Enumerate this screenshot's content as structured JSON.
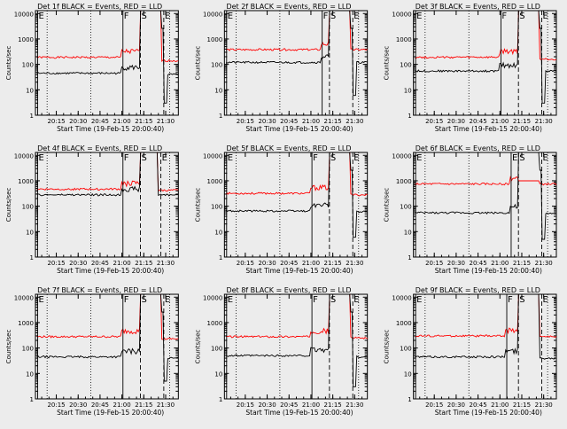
{
  "figure": {
    "x_tick_labels": [
      "20:15",
      "20:30",
      "20:45",
      "21:00",
      "21:15",
      "21:30"
    ],
    "xlabel": "Start Time (19-Feb-15 20:00:40)",
    "ylabel": "Counts/sec",
    "y_tick_labels": [
      "1",
      "10",
      "100",
      "1000",
      "10000"
    ]
  },
  "chart_data": [
    {
      "type": "line",
      "title": "Det 1f BLACK = Events, RED = LLD",
      "xlim_min": [
        0,
        98
      ],
      "ylim": [
        1,
        13000
      ],
      "yscale": "log",
      "markers": [
        {
          "label": "E",
          "x": 1.5
        },
        {
          "label": "F",
          "x": 60
        },
        {
          "label": "S",
          "x": 72
        },
        {
          "label": "E",
          "x": 88
        }
      ],
      "series": [
        {
          "color": "#ff0000",
          "baseline": 190,
          "peak": 13000,
          "post": 140,
          "dip": null
        },
        {
          "color": "#000000",
          "baseline": 45,
          "peak": 13000,
          "post": 40,
          "dip": 3
        }
      ]
    },
    {
      "type": "line",
      "title": "Det 2f BLACK = Events, RED = LLD",
      "xlim_min": [
        0,
        98
      ],
      "ylim": [
        1,
        13000
      ],
      "yscale": "log",
      "markers": [
        {
          "label": "E",
          "x": 1.5
        },
        {
          "label": "F",
          "x": 67
        },
        {
          "label": "S",
          "x": 72
        },
        {
          "label": "E",
          "x": 88
        }
      ],
      "series": [
        {
          "color": "#ff0000",
          "baseline": 380,
          "peak": 13000,
          "post": 380,
          "dip": null
        },
        {
          "color": "#000000",
          "baseline": 120,
          "peak": 13000,
          "post": 120,
          "dip": 6
        }
      ]
    },
    {
      "type": "line",
      "title": "Det 3f BLACK = Events, RED = LLD",
      "xlim_min": [
        0,
        98
      ],
      "ylim": [
        1,
        13000
      ],
      "yscale": "log",
      "markers": [
        {
          "label": "E",
          "x": 1.5
        },
        {
          "label": "F",
          "x": 60
        },
        {
          "label": "S",
          "x": 72
        },
        {
          "label": "E",
          "x": 88
        }
      ],
      "series": [
        {
          "color": "#ff0000",
          "baseline": 190,
          "peak": 13000,
          "post": 160,
          "dip": null
        },
        {
          "color": "#000000",
          "baseline": 55,
          "peak": 13000,
          "post": 55,
          "dip": 3
        }
      ]
    },
    {
      "type": "line",
      "title": "Det 4f BLACK = Events, RED = LLD",
      "xlim_min": [
        0,
        98
      ],
      "ylim": [
        1,
        13000
      ],
      "yscale": "log",
      "markers": [
        {
          "label": "E",
          "x": 1.5
        },
        {
          "label": "F",
          "x": 60
        },
        {
          "label": "S",
          "x": 72
        },
        {
          "label": "E",
          "x": 86
        }
      ],
      "series": [
        {
          "color": "#ff0000",
          "baseline": 470,
          "peak": 13000,
          "post": 420,
          "dip": null
        },
        {
          "color": "#000000",
          "baseline": 280,
          "peak": 13000,
          "post": 280,
          "dip": null
        }
      ]
    },
    {
      "type": "line",
      "title": "Det 5f BLACK = Events, RED = LLD",
      "xlim_min": [
        0,
        98
      ],
      "ylim": [
        1,
        13000
      ],
      "yscale": "log",
      "markers": [
        {
          "label": "E",
          "x": 1.5
        },
        {
          "label": "F",
          "x": 60
        },
        {
          "label": "S",
          "x": 72
        },
        {
          "label": "E",
          "x": 88
        }
      ],
      "series": [
        {
          "color": "#ff0000",
          "baseline": 320,
          "peak": 13000,
          "post": 280,
          "dip": null
        },
        {
          "color": "#000000",
          "baseline": 65,
          "peak": 13000,
          "post": 60,
          "dip": 6
        }
      ]
    },
    {
      "type": "line",
      "title": "Det 6f BLACK = Events, RED = LLD",
      "xlim_min": [
        0,
        98
      ],
      "ylim": [
        1,
        13000
      ],
      "yscale": "log",
      "markers": [
        {
          "label": "E",
          "x": 1.5
        },
        {
          "label": "E",
          "x": 67
        },
        {
          "label": "S",
          "x": 72
        },
        {
          "label": "E",
          "x": 88
        }
      ],
      "series": [
        {
          "color": "#ff0000",
          "baseline": 750,
          "peak": 1000,
          "post": 750,
          "dip": null
        },
        {
          "color": "#000000",
          "baseline": 55,
          "peak": 13000,
          "post": 50,
          "dip": 5
        }
      ]
    },
    {
      "type": "line",
      "title": "Det 7f BLACK = Events, RED = LLD",
      "xlim_min": [
        0,
        98
      ],
      "ylim": [
        1,
        13000
      ],
      "yscale": "log",
      "markers": [
        {
          "label": "E",
          "x": 1.5
        },
        {
          "label": "F",
          "x": 60
        },
        {
          "label": "S",
          "x": 72
        },
        {
          "label": "E",
          "x": 88
        }
      ],
      "series": [
        {
          "color": "#ff0000",
          "baseline": 280,
          "peak": 13000,
          "post": 230,
          "dip": null
        },
        {
          "color": "#000000",
          "baseline": 45,
          "peak": 13000,
          "post": 40,
          "dip": 5
        }
      ]
    },
    {
      "type": "line",
      "title": "Det 8f BLACK = Events, RED = LLD",
      "xlim_min": [
        0,
        98
      ],
      "ylim": [
        1,
        13000
      ],
      "yscale": "log",
      "markers": [
        {
          "label": "E",
          "x": 1.5
        },
        {
          "label": "F",
          "x": 60
        },
        {
          "label": "S",
          "x": 72
        },
        {
          "label": "E",
          "x": 88
        }
      ],
      "series": [
        {
          "color": "#ff0000",
          "baseline": 280,
          "peak": 13000,
          "post": 250,
          "dip": null
        },
        {
          "color": "#000000",
          "baseline": 50,
          "peak": 13000,
          "post": 45,
          "dip": 3
        }
      ]
    },
    {
      "type": "line",
      "title": "Det 9f BLACK = Events, RED = LLD",
      "xlim_min": [
        0,
        98
      ],
      "ylim": [
        1,
        13000
      ],
      "yscale": "log",
      "markers": [
        {
          "label": "E",
          "x": 1.5
        },
        {
          "label": "F",
          "x": 64
        },
        {
          "label": "S",
          "x": 72
        },
        {
          "label": "E",
          "x": 88
        }
      ],
      "series": [
        {
          "color": "#ff0000",
          "baseline": 300,
          "peak": 13000,
          "post": 280,
          "dip": null
        },
        {
          "color": "#000000",
          "baseline": 45,
          "peak": 13000,
          "post": 40,
          "dip": null
        }
      ]
    }
  ]
}
